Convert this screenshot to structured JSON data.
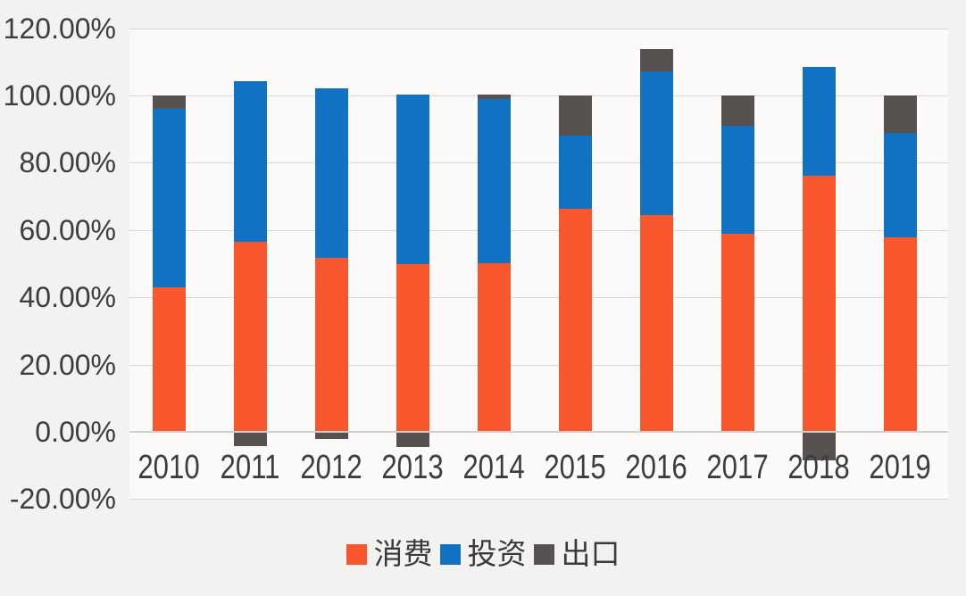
{
  "chart_data": {
    "type": "bar",
    "stacked": true,
    "title": "",
    "categories": [
      "2010",
      "2011",
      "2012",
      "2013",
      "2014",
      "2015",
      "2016",
      "2017",
      "2018",
      "2019"
    ],
    "series": [
      {
        "id": "consumption",
        "name": "消费",
        "color": "#f8572d",
        "values": [
          43.1,
          56.5,
          51.8,
          49.8,
          50.2,
          66.4,
          64.6,
          58.8,
          76.2,
          57.8
        ]
      },
      {
        "id": "investment",
        "name": "投资",
        "color": "#1172c4",
        "values": [
          52.9,
          47.7,
          50.4,
          50.6,
          48.8,
          21.6,
          42.5,
          32.1,
          32.4,
          31.2
        ]
      },
      {
        "id": "export",
        "name": "出口",
        "color": "#575250",
        "values": [
          4.0,
          -4.2,
          -2.2,
          -4.4,
          1.3,
          12.0,
          6.8,
          9.1,
          -8.6,
          11.0
        ]
      }
    ],
    "ylim": [
      -20,
      120
    ],
    "ytick_step": 20,
    "ytick_labels": [
      "120.00%",
      "100.00%",
      "80.00%",
      "60.00%",
      "40.00%",
      "20.00%",
      "0.00%",
      "-20.00%"
    ],
    "ytick_values": [
      120,
      100,
      80,
      60,
      40,
      20,
      0,
      -20
    ],
    "grid": true,
    "legend_position": "bottom",
    "colors": {
      "background": "#f3f2f1",
      "plot_background": "#fbfaf9",
      "gridline": "#d9d8d6",
      "axis_text": "#3e3d3d"
    }
  }
}
